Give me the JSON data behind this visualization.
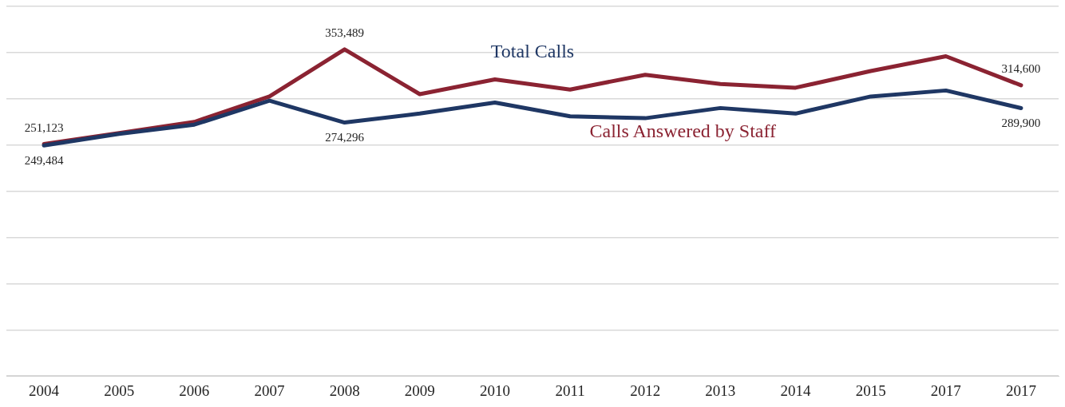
{
  "chart_data": {
    "type": "line",
    "categories": [
      "2004",
      "2005",
      "2006",
      "2007",
      "2008",
      "2009",
      "2010",
      "2011",
      "2012",
      "2013",
      "2014",
      "2015",
      "2017",
      "2017"
    ],
    "series": [
      {
        "name": "Calls Answered by Staff",
        "color": "#8b2332",
        "values": [
          251123,
          263000,
          275000,
          302500,
          353489,
          305000,
          321000,
          310000,
          326000,
          316000,
          312000,
          330000,
          346000,
          314600
        ],
        "value_labels": [
          "251,123",
          null,
          null,
          null,
          "353,489",
          null,
          null,
          null,
          null,
          null,
          null,
          null,
          null,
          "314,600"
        ]
      },
      {
        "name": "Total Calls",
        "color": "#1f3764",
        "values": [
          249484,
          262000,
          272000,
          298000,
          274296,
          284000,
          296000,
          281000,
          279000,
          290000,
          284000,
          302500,
          309000,
          289900
        ],
        "value_labels": [
          "249,484",
          null,
          null,
          null,
          "274,296",
          null,
          null,
          null,
          null,
          null,
          null,
          null,
          null,
          "289,900"
        ]
      }
    ],
    "ylim": [
      0,
      400000
    ],
    "yticks": [
      {
        "value": 0,
        "label": null
      },
      {
        "value": 50000,
        "label": null
      },
      {
        "value": 100000,
        "label": null
      },
      {
        "value": 150000,
        "label": null
      },
      {
        "value": 200000,
        "label": null
      },
      {
        "value": 250000,
        "label": null
      },
      {
        "value": 300000,
        "label": null
      },
      {
        "value": 350000,
        "label": null
      },
      {
        "value": 400000,
        "label": null
      }
    ],
    "grid": "y",
    "legend": false,
    "marker": "none",
    "line_style": "solid",
    "tick_labels": "x"
  }
}
